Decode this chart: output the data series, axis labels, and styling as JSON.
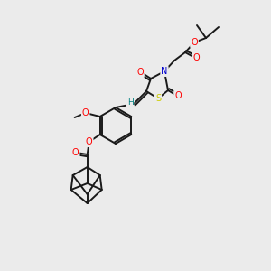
{
  "bg_color": "#ebebeb",
  "bond_color": "#1a1a1a",
  "atom_colors": {
    "O": "#ff0000",
    "N": "#0000cc",
    "S": "#cccc00",
    "H": "#008080",
    "C": "#1a1a1a"
  },
  "figsize": [
    3.0,
    3.0
  ],
  "dpi": 100
}
